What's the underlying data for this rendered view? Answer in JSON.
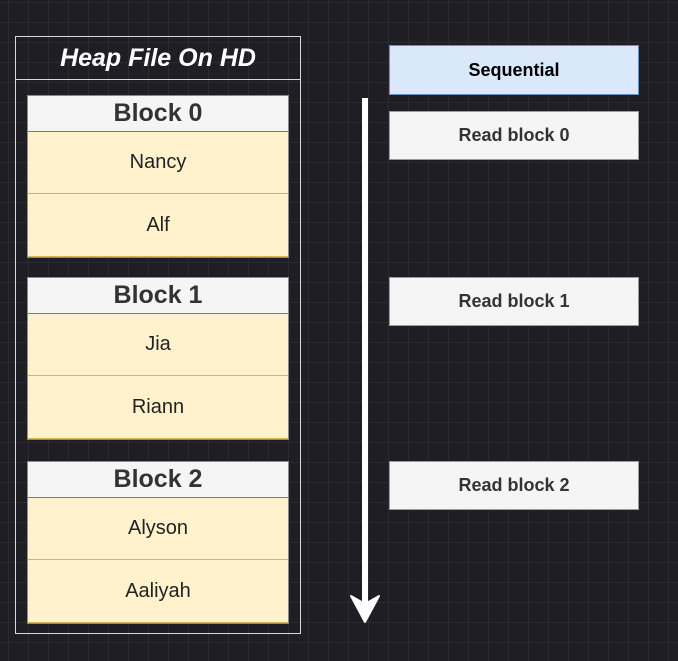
{
  "heap": {
    "title": "Heap File On HD",
    "blocks": [
      {
        "label": "Block 0",
        "records": [
          "Nancy",
          "Alf"
        ]
      },
      {
        "label": "Block 1",
        "records": [
          "Jia",
          "Riann"
        ]
      },
      {
        "label": "Block 2",
        "records": [
          "Alyson",
          "Aaliyah"
        ]
      }
    ]
  },
  "access": {
    "header": "Sequential",
    "steps": [
      "Read block 0",
      "Read block 1",
      "Read block 2"
    ]
  },
  "colors": {
    "background": "#1e1e24",
    "record_fill": "#fff2cc",
    "record_border": "#d6b656",
    "header_fill": "#dae8fc",
    "header_border": "#6c8ebf",
    "box_fill": "#f5f5f5",
    "arrow": "#ffffff"
  }
}
